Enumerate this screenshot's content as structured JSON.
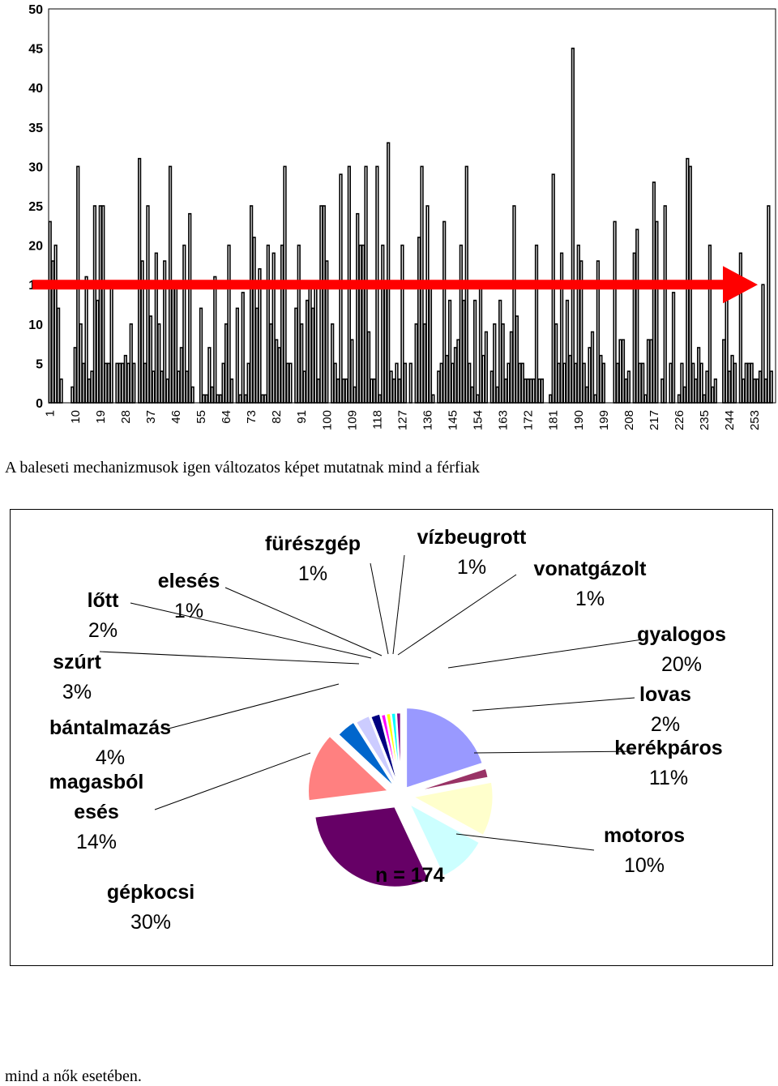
{
  "chart_data": [
    {
      "type": "bar",
      "ylim": [
        0,
        50
      ],
      "yticks": [
        0,
        5,
        10,
        15,
        20,
        25,
        30,
        35,
        40,
        45,
        50
      ],
      "xtick_labels": [
        "1",
        "10",
        "19",
        "28",
        "37",
        "46",
        "55",
        "64",
        "73",
        "82",
        "91",
        "100",
        "109",
        "118",
        "127",
        "136",
        "145",
        "154",
        "163",
        "172",
        "181",
        "190",
        "199",
        "208",
        "217",
        "226",
        "235",
        "244",
        "253"
      ],
      "x_start": 1,
      "x_end": 256,
      "reference_line": 15,
      "values": [
        23,
        18,
        20,
        12,
        3,
        0,
        0,
        0,
        2,
        7,
        30,
        10,
        5,
        16,
        3,
        4,
        25,
        13,
        25,
        25,
        5,
        5,
        15,
        0,
        5,
        5,
        5,
        6,
        5,
        10,
        5,
        0,
        31,
        18,
        5,
        25,
        11,
        4,
        19,
        10,
        4,
        18,
        3,
        30,
        15,
        15,
        4,
        7,
        20,
        4,
        24,
        2,
        0,
        0,
        12,
        1,
        1,
        7,
        2,
        16,
        1,
        1,
        5,
        10,
        20,
        3,
        0,
        12,
        1,
        14,
        1,
        5,
        25,
        21,
        12,
        17,
        1,
        1,
        20,
        10,
        19,
        8,
        7,
        20,
        30,
        5,
        5,
        0,
        12,
        20,
        10,
        4,
        13,
        15,
        12,
        15,
        3,
        25,
        25,
        18,
        0,
        10,
        5,
        3,
        29,
        3,
        3,
        30,
        8,
        2,
        24,
        20,
        20,
        30,
        9,
        3,
        3,
        30,
        1,
        20,
        15,
        33,
        4,
        3,
        5,
        3,
        20,
        5,
        0,
        5,
        0,
        10,
        21,
        30,
        10,
        25,
        15,
        1,
        0,
        4,
        5,
        23,
        6,
        13,
        5,
        7,
        8,
        20,
        13,
        30,
        5,
        2,
        13,
        1,
        15,
        6,
        9,
        0,
        4,
        10,
        2,
        13,
        10,
        3,
        5,
        9,
        25,
        11,
        5,
        5,
        3,
        3,
        3,
        3,
        20,
        3,
        3,
        0,
        0,
        1,
        29,
        10,
        5,
        19,
        5,
        13,
        6,
        45,
        5,
        20,
        18,
        5,
        2,
        7,
        9,
        1,
        18,
        6,
        5,
        0,
        0,
        0,
        23,
        5,
        8,
        8,
        3,
        4,
        0,
        19,
        22,
        5,
        5,
        1,
        8,
        8,
        28,
        23,
        0,
        3,
        25,
        0,
        5,
        14,
        0,
        1,
        5,
        2,
        31,
        30,
        5,
        3,
        7,
        5,
        1,
        4,
        20,
        2,
        3,
        0,
        0,
        8,
        13,
        4,
        6,
        5,
        0,
        19,
        3,
        5,
        5,
        5,
        3,
        3,
        4,
        15,
        3,
        25,
        4,
        0
      ]
    },
    {
      "type": "pie",
      "n_label": "n = 174",
      "slices": [
        {
          "name": "gyalogos",
          "pct_label": "20%",
          "value": 20,
          "color": "#9999ff"
        },
        {
          "name": "lovas",
          "pct_label": "2%",
          "value": 2,
          "color": "#993366"
        },
        {
          "name": "kerékpáros",
          "pct_label": "11%",
          "value": 11,
          "color": "#ffffcc"
        },
        {
          "name": "motoros",
          "pct_label": "10%",
          "value": 10,
          "color": "#ccffff"
        },
        {
          "name": "gépkocsi",
          "pct_label": "30%",
          "value": 30,
          "color": "#660066"
        },
        {
          "name": "magasból esés",
          "pct_label": "14%",
          "value": 14,
          "color": "#ff8080"
        },
        {
          "name": "bántalmazás",
          "pct_label": "4%",
          "value": 4,
          "color": "#0066cc"
        },
        {
          "name": "szúrt",
          "pct_label": "3%",
          "value": 3,
          "color": "#ccccff"
        },
        {
          "name": "lőtt",
          "pct_label": "2%",
          "value": 2,
          "color": "#000080"
        },
        {
          "name": "elesés",
          "pct_label": "1%",
          "value": 1,
          "color": "#ff00ff"
        },
        {
          "name": "fürészgép",
          "pct_label": "1%",
          "value": 1,
          "color": "#ffff00"
        },
        {
          "name": "vízbeugrott",
          "pct_label": "1%",
          "value": 1,
          "color": "#00ffff"
        },
        {
          "name": "vonatgázolt",
          "pct_label": "1%",
          "value": 1,
          "color": "#800080"
        }
      ]
    }
  ],
  "text": {
    "caption_top": "A baleseti mechanizmusok igen változatos képet mutatnak mind a férfiak",
    "caption_bottom": "mind a nők esetében."
  },
  "colors": {
    "bar": "#000000",
    "reference_arrow": "#ff0000"
  }
}
